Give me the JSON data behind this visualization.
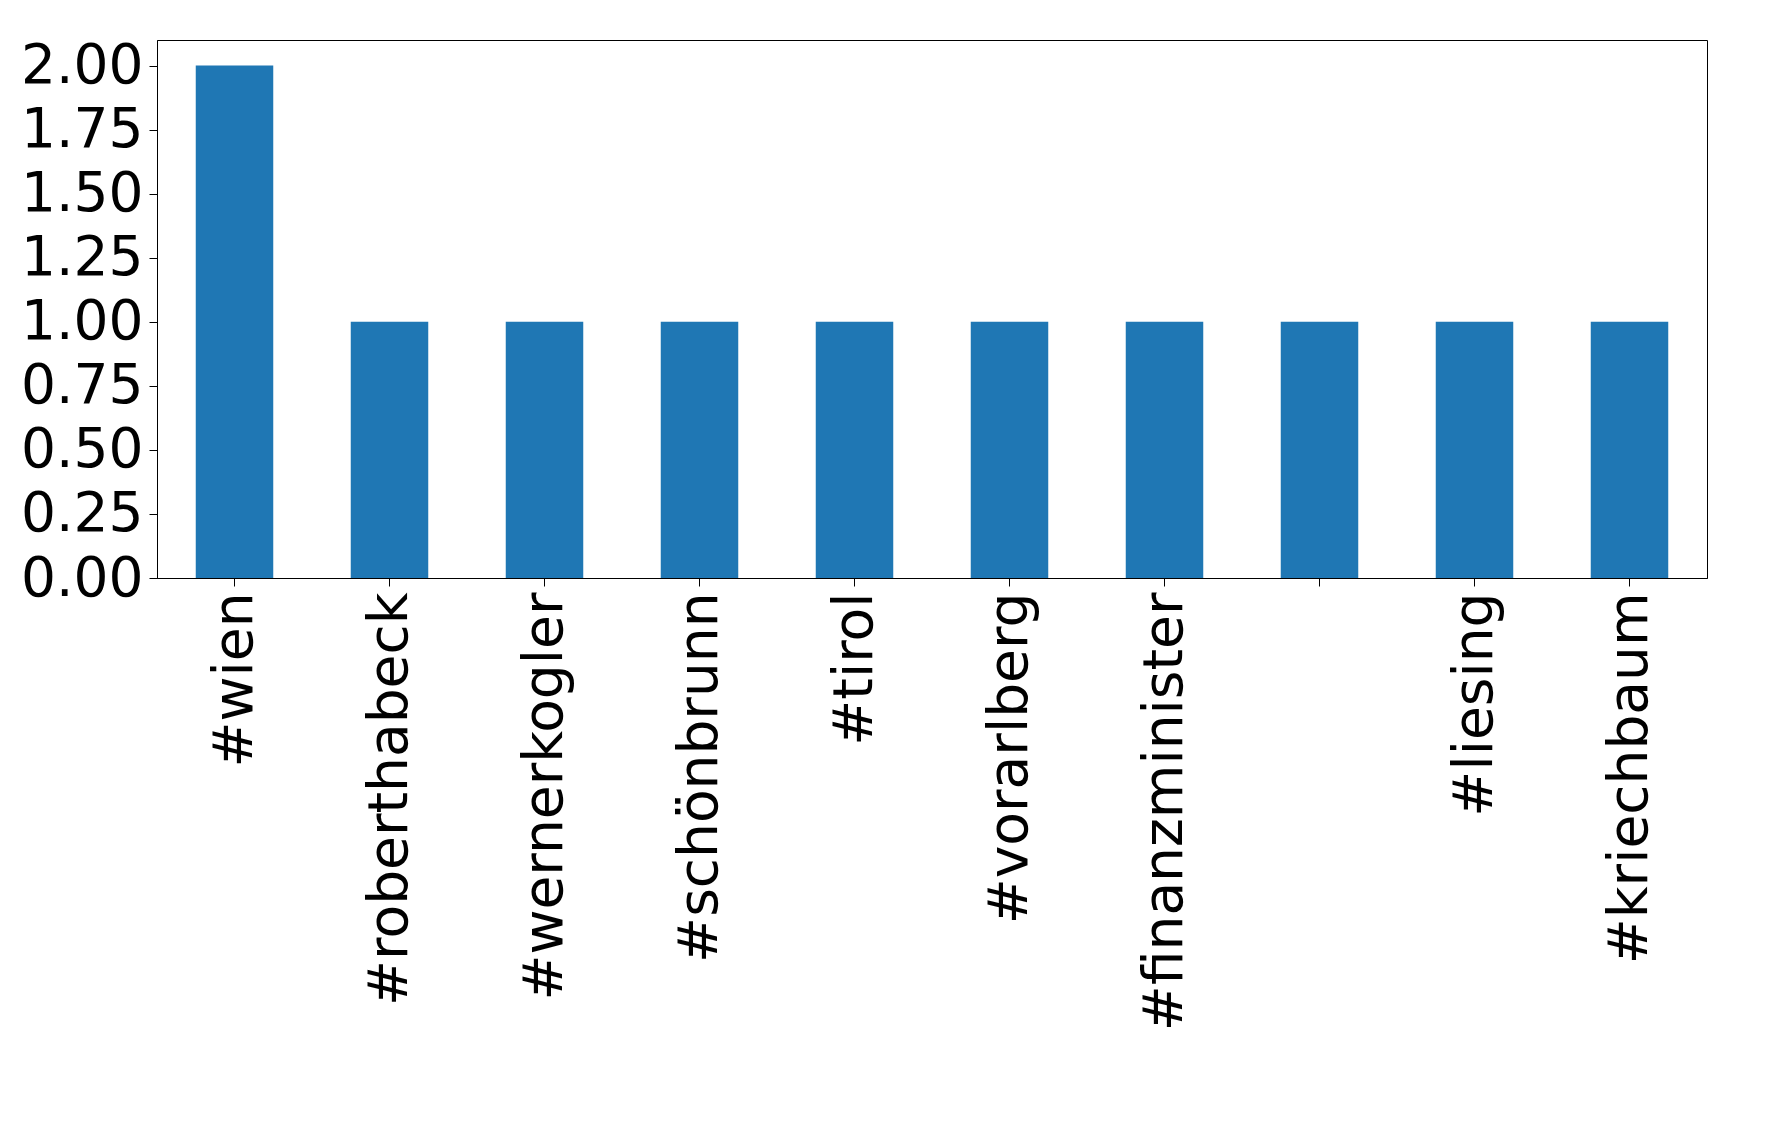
{
  "chart_data": {
    "type": "bar",
    "categories": [
      "#wien",
      "#roberthabeck",
      "#wernerkogler",
      "#schönbrunn",
      "#tirol",
      "#vorarlberg",
      "#finanzminister",
      null,
      "#liesing",
      "#kriechbaum"
    ],
    "values": [
      2,
      1,
      1,
      1,
      1,
      1,
      1,
      1,
      1,
      1
    ],
    "color": "#1f77b4",
    "ylim": [
      0,
      2.1
    ],
    "yticks": [
      {
        "value": 0,
        "label": "0.00"
      },
      {
        "value": 0.25,
        "label": "0.25"
      },
      {
        "value": 0.5,
        "label": "0.50"
      },
      {
        "value": 0.75,
        "label": "0.75"
      },
      {
        "value": 1,
        "label": "1.00"
      },
      {
        "value": 1.25,
        "label": "1.25"
      },
      {
        "value": 1.5,
        "label": "1.50"
      },
      {
        "value": 1.75,
        "label": "1.75"
      },
      {
        "value": 2,
        "label": "2.00"
      }
    ],
    "grid": false
  }
}
